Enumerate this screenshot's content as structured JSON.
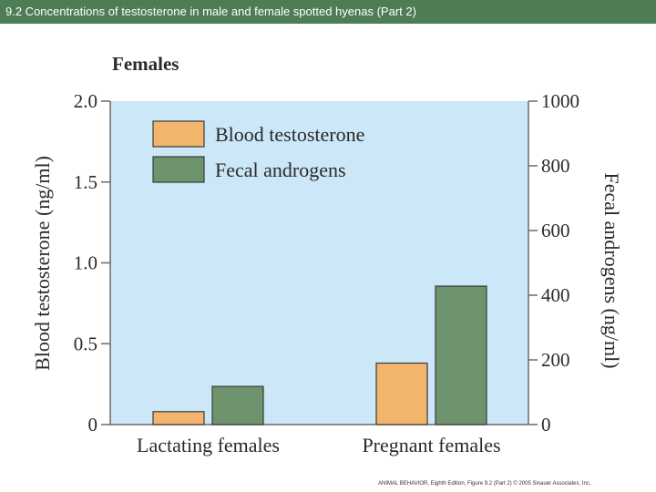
{
  "slide": {
    "title": "9.2 Concentrations of testosterone in male and female spotted hyenas (Part 2)",
    "credit": "ANIMAL BEHAVIOR, Eighth Edition, Figure 9.2 (Part 2) © 2005 Sinauer Associates, Inc."
  },
  "chart_data": {
    "type": "bar",
    "title": "Females",
    "categories": [
      "Lactating females",
      "Pregnant females"
    ],
    "series": [
      {
        "name": "Blood testosterone",
        "axis": "left",
        "color": "#f2b56b",
        "values": [
          0.08,
          0.38
        ]
      },
      {
        "name": "Fecal androgens",
        "axis": "right",
        "color": "#6f936d",
        "values": [
          118,
          428
        ]
      }
    ],
    "ylabel_left": "Blood testosterone (ng/ml)",
    "ylabel_right": "Fecal androgens (ng/ml)",
    "ylim_left": [
      0,
      2.0
    ],
    "ylim_right": [
      0,
      1000
    ],
    "yticks_left": [
      "0",
      "0.5",
      "1.0",
      "1.5",
      "2.0"
    ],
    "yticks_right": [
      "0",
      "200",
      "400",
      "600",
      "800",
      "1000"
    ],
    "plot_background": "#cce7f7",
    "legend_position": "top-left"
  }
}
